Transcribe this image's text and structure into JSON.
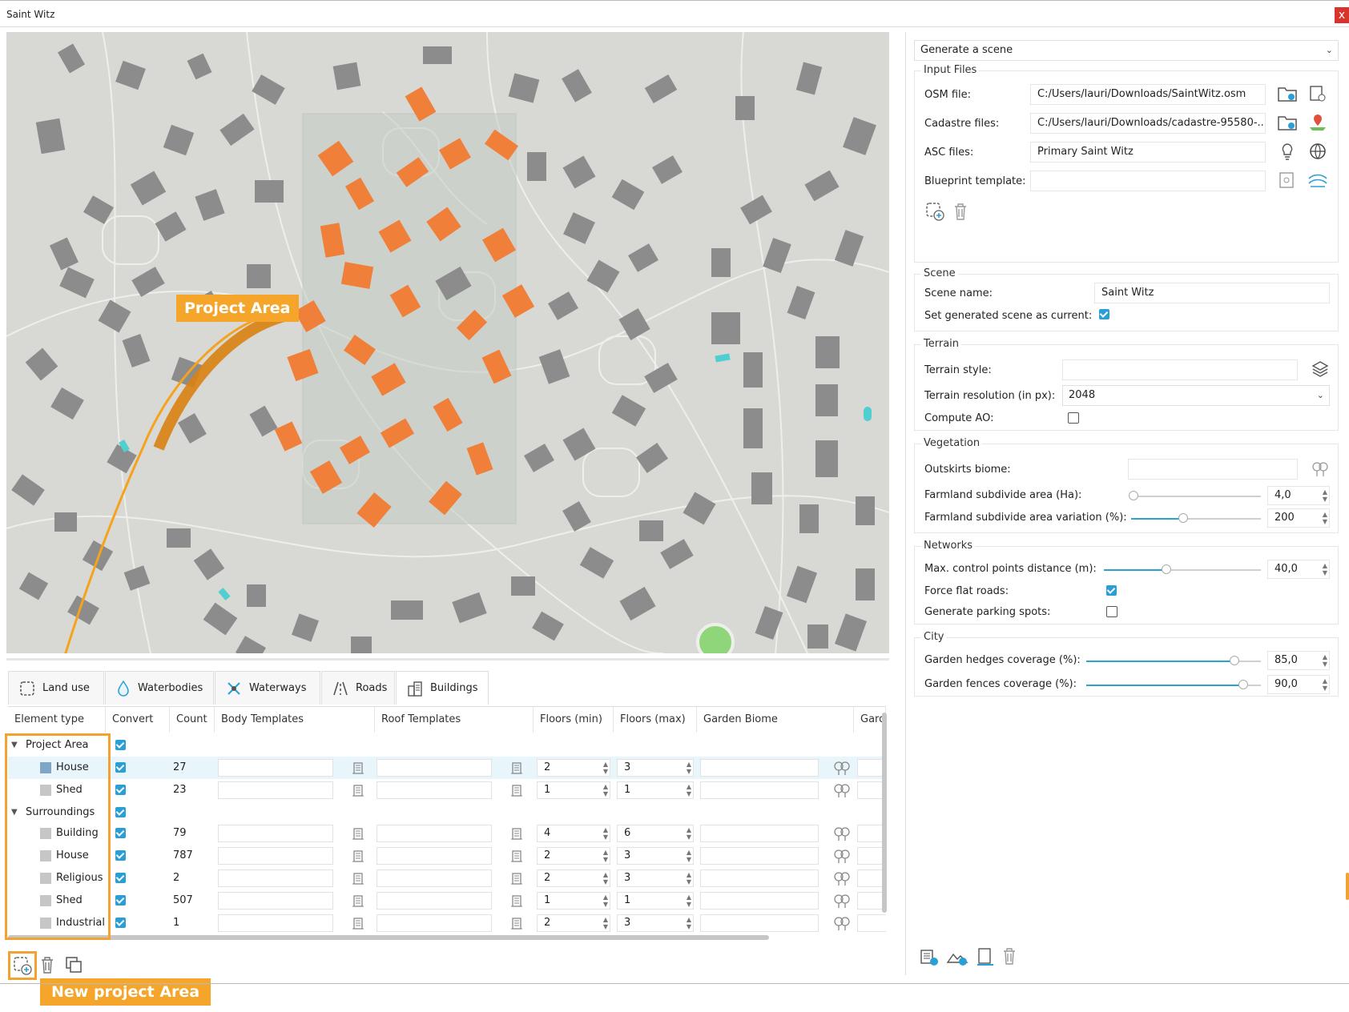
{
  "window": {
    "title": "Saint Witz",
    "close_label": "x"
  },
  "map": {
    "callout": "Project Area",
    "colors": {
      "background": "#d8d8d4",
      "building": "#8c8c8c",
      "project_building": "#f07f3a",
      "water": "#4fcfcf",
      "park": "#8fd67b",
      "area": "#c5ccc4"
    }
  },
  "tabs": [
    {
      "label": "Land use",
      "icon": "land-use-icon"
    },
    {
      "label": "Waterbodies",
      "icon": "water-drop-icon"
    },
    {
      "label": "Waterways",
      "icon": "waterways-icon"
    },
    {
      "label": "Roads",
      "icon": "roads-icon"
    },
    {
      "label": "Buildings",
      "icon": "buildings-icon"
    }
  ],
  "table": {
    "columns": [
      "Element type",
      "Convert",
      "Count",
      "Body Templates",
      "Roof Templates",
      "Floors (min)",
      "Floors (max)",
      "Garden Biome",
      "Gard"
    ],
    "groups": [
      {
        "name": "Project Area",
        "convert": true,
        "rows": [
          {
            "type": "House",
            "convert": true,
            "count": "27",
            "floors_min": "2",
            "floors_max": "3",
            "color": "#7fa6c5"
          },
          {
            "type": "Shed",
            "convert": true,
            "count": "23",
            "floors_min": "1",
            "floors_max": "1",
            "color": "#c6c6c6"
          }
        ]
      },
      {
        "name": "Surroundings",
        "convert": true,
        "rows": [
          {
            "type": "Building",
            "convert": true,
            "count": "79",
            "floors_min": "4",
            "floors_max": "6",
            "color": "#c6c6c6"
          },
          {
            "type": "House",
            "convert": true,
            "count": "787",
            "floors_min": "2",
            "floors_max": "3",
            "color": "#c6c6c6"
          },
          {
            "type": "Religious",
            "convert": true,
            "count": "2",
            "floors_min": "2",
            "floors_max": "3",
            "color": "#c6c6c6"
          },
          {
            "type": "Shed",
            "convert": true,
            "count": "507",
            "floors_min": "1",
            "floors_max": "1",
            "color": "#c6c6c6"
          },
          {
            "type": "Industrial",
            "convert": true,
            "count": "1",
            "floors_min": "2",
            "floors_max": "3",
            "color": "#c6c6c6"
          }
        ]
      }
    ]
  },
  "bottom_toolbar": {
    "callout": "New project Area"
  },
  "right": {
    "mode": "Generate a scene",
    "input_files": {
      "title": "Input Files",
      "osm_label": "OSM file:",
      "osm_value": "C:/Users/lauri/Downloads/SaintWitz.osm",
      "cadastre_label": "Cadastre files:",
      "cadastre_value": "C:/Users/lauri/Downloads/cadastre-95580-...",
      "asc_label": "ASC files:",
      "asc_value": "Primary Saint Witz",
      "blueprint_label": "Blueprint template:",
      "blueprint_value": ""
    },
    "scene": {
      "title": "Scene",
      "name_label": "Scene name:",
      "name_value": "Saint Witz",
      "current_label": "Set generated scene as current:",
      "current_checked": true
    },
    "terrain": {
      "title": "Terrain",
      "style_label": "Terrain style:",
      "style_value": "",
      "resolution_label": "Terrain resolution (in px):",
      "resolution_value": "2048",
      "ao_label": "Compute AO:",
      "ao_checked": false
    },
    "vegetation": {
      "title": "Vegetation",
      "biome_label": "Outskirts biome:",
      "farm_area_label": "Farmland subdivide area (Ha):",
      "farm_area_value": "4,0",
      "farm_area_level": 0.02,
      "farm_var_label": "Farmland subdivide area variation (%):",
      "farm_var_value": "200",
      "farm_var_level": 0.4
    },
    "networks": {
      "title": "Networks",
      "cp_label": "Max. control points distance (m):",
      "cp_value": "40,0",
      "cp_level": 0.4,
      "flat_label": "Force flat roads:",
      "flat_checked": true,
      "parking_label": "Generate parking spots:",
      "parking_checked": false
    },
    "city": {
      "title": "City",
      "hedges_label": "Garden hedges coverage (%):",
      "hedges_value": "85,0",
      "hedges_level": 0.85,
      "fences_label": "Garden fences coverage (%):",
      "fences_value": "90,0",
      "fences_level": 0.9
    }
  }
}
